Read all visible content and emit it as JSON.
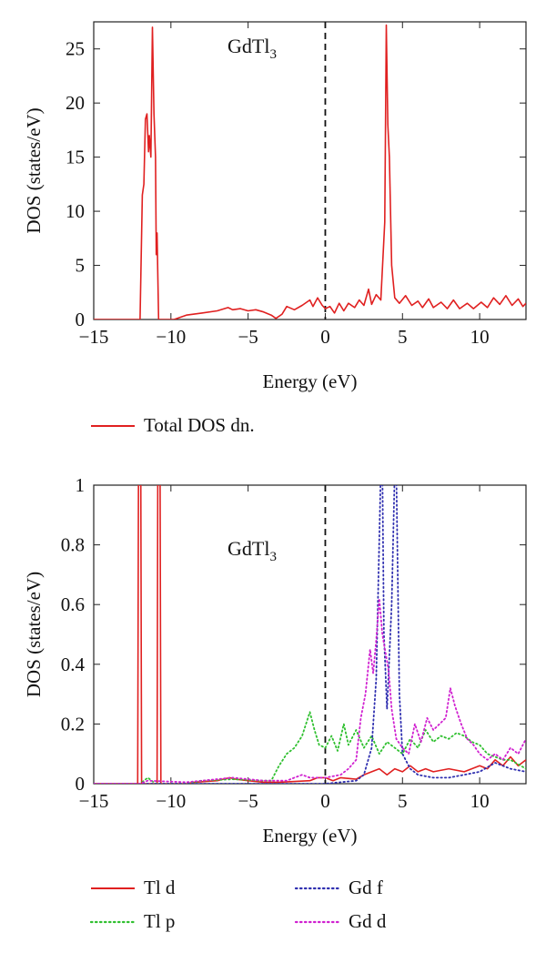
{
  "chart_data": [
    {
      "type": "line",
      "annotation": {
        "base": "GdTl",
        "sub": "3"
      },
      "xlabel": "Energy (eV)",
      "ylabel": "DOS (states/eV)",
      "xlim": [
        -15,
        13
      ],
      "ylim": [
        0,
        27.5
      ],
      "xticks": [
        -15,
        -10,
        -5,
        0,
        5,
        10
      ],
      "yticks": [
        0,
        5,
        10,
        15,
        20,
        25
      ],
      "grid": false,
      "fermi_line_x": 0,
      "legend_position": "below",
      "series": [
        {
          "name": "Total DOS dn.",
          "color": "#e02020",
          "style": "solid",
          "points": [
            [
              -15,
              0
            ],
            [
              -12.2,
              0
            ],
            [
              -12.0,
              0
            ],
            [
              -11.85,
              11.5
            ],
            [
              -11.75,
              12.5
            ],
            [
              -11.65,
              18.5
            ],
            [
              -11.55,
              19
            ],
            [
              -11.45,
              15.5
            ],
            [
              -11.4,
              17
            ],
            [
              -11.3,
              15
            ],
            [
              -11.2,
              27
            ],
            [
              -11.1,
              19
            ],
            [
              -11.0,
              15
            ],
            [
              -10.95,
              6
            ],
            [
              -10.9,
              8
            ],
            [
              -10.8,
              0
            ],
            [
              -10.6,
              0
            ],
            [
              -9.8,
              0
            ],
            [
              -9,
              0.4
            ],
            [
              -8,
              0.6
            ],
            [
              -7,
              0.8
            ],
            [
              -6.3,
              1.1
            ],
            [
              -6,
              0.9
            ],
            [
              -5.5,
              1
            ],
            [
              -5,
              0.8
            ],
            [
              -4.5,
              0.9
            ],
            [
              -4,
              0.7
            ],
            [
              -3.5,
              0.4
            ],
            [
              -3.2,
              0.1
            ],
            [
              -2.8,
              0.5
            ],
            [
              -2.5,
              1.2
            ],
            [
              -2,
              0.9
            ],
            [
              -1.5,
              1.3
            ],
            [
              -1,
              1.8
            ],
            [
              -0.8,
              1.2
            ],
            [
              -0.5,
              2
            ],
            [
              -0.2,
              1.3
            ],
            [
              0,
              1
            ],
            [
              0.3,
              1.2
            ],
            [
              0.6,
              0.6
            ],
            [
              0.9,
              1.5
            ],
            [
              1.2,
              0.8
            ],
            [
              1.5,
              1.5
            ],
            [
              1.9,
              1.1
            ],
            [
              2.2,
              1.8
            ],
            [
              2.5,
              1.3
            ],
            [
              2.8,
              2.8
            ],
            [
              3.0,
              1.4
            ],
            [
              3.3,
              2.3
            ],
            [
              3.6,
              1.8
            ],
            [
              3.85,
              9
            ],
            [
              3.95,
              27.2
            ],
            [
              4.05,
              18
            ],
            [
              4.15,
              15
            ],
            [
              4.3,
              5
            ],
            [
              4.5,
              2
            ],
            [
              4.8,
              1.5
            ],
            [
              5.2,
              2.2
            ],
            [
              5.6,
              1.3
            ],
            [
              6.0,
              1.7
            ],
            [
              6.3,
              1.1
            ],
            [
              6.7,
              1.9
            ],
            [
              7.0,
              1.1
            ],
            [
              7.5,
              1.6
            ],
            [
              7.9,
              1
            ],
            [
              8.3,
              1.8
            ],
            [
              8.7,
              1
            ],
            [
              9.2,
              1.5
            ],
            [
              9.6,
              1
            ],
            [
              10.1,
              1.6
            ],
            [
              10.5,
              1.1
            ],
            [
              10.9,
              2
            ],
            [
              11.3,
              1.4
            ],
            [
              11.7,
              2.2
            ],
            [
              12.1,
              1.3
            ],
            [
              12.5,
              1.9
            ],
            [
              12.8,
              1.2
            ],
            [
              13,
              1.5
            ]
          ]
        }
      ]
    },
    {
      "type": "line",
      "annotation": {
        "base": "GdTl",
        "sub": "3"
      },
      "xlabel": "Energy (eV)",
      "ylabel": "DOS (states/eV)",
      "xlim": [
        -15,
        13
      ],
      "ylim": [
        0,
        1
      ],
      "xticks": [
        -15,
        -10,
        -5,
        0,
        5,
        10
      ],
      "yticks": [
        0,
        0.2,
        0.4,
        0.6,
        0.8,
        1
      ],
      "grid": false,
      "fermi_line_x": 0,
      "legend_position": "below",
      "series": [
        {
          "name": "Tl d",
          "color": "#e02020",
          "style": "solid",
          "points": [
            [
              -15,
              0
            ],
            [
              -12.15,
              0
            ],
            [
              -12.1,
              1.05
            ],
            [
              -11.95,
              1.05
            ],
            [
              -11.9,
              0
            ],
            [
              -10.9,
              0
            ],
            [
              -10.85,
              1.05
            ],
            [
              -10.7,
              1.05
            ],
            [
              -10.65,
              0
            ],
            [
              -9,
              0
            ],
            [
              -8.5,
              0.005
            ],
            [
              -7,
              0.01
            ],
            [
              -6.2,
              0.02
            ],
            [
              -5.8,
              0.015
            ],
            [
              -5,
              0.01
            ],
            [
              -4,
              0.005
            ],
            [
              -3,
              0.005
            ],
            [
              -1,
              0.01
            ],
            [
              -0.5,
              0.02
            ],
            [
              0,
              0.02
            ],
            [
              0.5,
              0.01
            ],
            [
              1,
              0.02
            ],
            [
              2,
              0.015
            ],
            [
              2.5,
              0.03
            ],
            [
              3,
              0.04
            ],
            [
              3.5,
              0.05
            ],
            [
              4,
              0.03
            ],
            [
              4.5,
              0.05
            ],
            [
              5,
              0.04
            ],
            [
              5.5,
              0.06
            ],
            [
              6,
              0.04
            ],
            [
              6.5,
              0.05
            ],
            [
              7,
              0.04
            ],
            [
              8,
              0.05
            ],
            [
              9,
              0.04
            ],
            [
              10,
              0.06
            ],
            [
              10.5,
              0.05
            ],
            [
              11,
              0.08
            ],
            [
              11.5,
              0.06
            ],
            [
              12,
              0.09
            ],
            [
              12.5,
              0.06
            ],
            [
              13,
              0.08
            ]
          ]
        },
        {
          "name": "Tl p",
          "color": "#30c030",
          "style": "dotted",
          "points": [
            [
              -15,
              0
            ],
            [
              -12,
              0
            ],
            [
              -11.5,
              0.02
            ],
            [
              -11,
              0
            ],
            [
              -9,
              0
            ],
            [
              -8,
              0.01
            ],
            [
              -6,
              0.015
            ],
            [
              -4,
              0.01
            ],
            [
              -3.5,
              0.01
            ],
            [
              -3,
              0.06
            ],
            [
              -2.5,
              0.1
            ],
            [
              -2,
              0.12
            ],
            [
              -1.5,
              0.16
            ],
            [
              -1,
              0.24
            ],
            [
              -0.7,
              0.18
            ],
            [
              -0.4,
              0.13
            ],
            [
              0,
              0.12
            ],
            [
              0.4,
              0.16
            ],
            [
              0.8,
              0.11
            ],
            [
              1.2,
              0.2
            ],
            [
              1.5,
              0.13
            ],
            [
              2,
              0.18
            ],
            [
              2.5,
              0.12
            ],
            [
              3,
              0.16
            ],
            [
              3.5,
              0.1
            ],
            [
              4,
              0.14
            ],
            [
              4.5,
              0.12
            ],
            [
              5,
              0.1
            ],
            [
              5.5,
              0.15
            ],
            [
              6,
              0.12
            ],
            [
              6.5,
              0.18
            ],
            [
              7,
              0.14
            ],
            [
              7.5,
              0.16
            ],
            [
              8,
              0.15
            ],
            [
              8.5,
              0.17
            ],
            [
              9,
              0.16
            ],
            [
              9.5,
              0.14
            ],
            [
              10,
              0.13
            ],
            [
              10.5,
              0.1
            ],
            [
              11,
              0.09
            ],
            [
              11.5,
              0.08
            ],
            [
              12,
              0.08
            ],
            [
              13,
              0.05
            ]
          ]
        },
        {
          "name": "Gd f",
          "color": "#3030b0",
          "style": "dotted",
          "points": [
            [
              -15,
              0
            ],
            [
              0,
              0
            ],
            [
              2,
              0.01
            ],
            [
              2.5,
              0.03
            ],
            [
              3,
              0.12
            ],
            [
              3.3,
              0.35
            ],
            [
              3.6,
              1.05
            ],
            [
              3.7,
              1.05
            ],
            [
              3.8,
              0.5
            ],
            [
              4.0,
              0.25
            ],
            [
              4.3,
              0.6
            ],
            [
              4.5,
              1.05
            ],
            [
              4.6,
              1.05
            ],
            [
              4.8,
              0.3
            ],
            [
              5,
              0.1
            ],
            [
              5.5,
              0.05
            ],
            [
              6,
              0.03
            ],
            [
              7,
              0.02
            ],
            [
              8,
              0.02
            ],
            [
              9,
              0.03
            ],
            [
              10,
              0.04
            ],
            [
              11,
              0.07
            ],
            [
              12,
              0.05
            ],
            [
              13,
              0.04
            ]
          ]
        },
        {
          "name": "Gd d",
          "color": "#d020d0",
          "style": "dotted",
          "points": [
            [
              -15,
              0
            ],
            [
              -12,
              0
            ],
            [
              -11.5,
              0.01
            ],
            [
              -9,
              0.005
            ],
            [
              -8,
              0.01
            ],
            [
              -6,
              0.02
            ],
            [
              -4,
              0.01
            ],
            [
              -3,
              0.01
            ],
            [
              -2.5,
              0.01
            ],
            [
              -2,
              0.02
            ],
            [
              -1.5,
              0.03
            ],
            [
              -1,
              0.02
            ],
            [
              0,
              0.02
            ],
            [
              1,
              0.03
            ],
            [
              1.5,
              0.05
            ],
            [
              2,
              0.08
            ],
            [
              2.3,
              0.22
            ],
            [
              2.6,
              0.3
            ],
            [
              2.9,
              0.45
            ],
            [
              3.1,
              0.37
            ],
            [
              3.3,
              0.48
            ],
            [
              3.5,
              0.62
            ],
            [
              3.7,
              0.5
            ],
            [
              3.9,
              0.44
            ],
            [
              4.1,
              0.38
            ],
            [
              4.3,
              0.25
            ],
            [
              4.6,
              0.15
            ],
            [
              5,
              0.12
            ],
            [
              5.4,
              0.1
            ],
            [
              5.8,
              0.2
            ],
            [
              6.2,
              0.14
            ],
            [
              6.6,
              0.22
            ],
            [
              7,
              0.18
            ],
            [
              7.4,
              0.2
            ],
            [
              7.8,
              0.22
            ],
            [
              8.1,
              0.32
            ],
            [
              8.4,
              0.26
            ],
            [
              8.8,
              0.2
            ],
            [
              9.2,
              0.15
            ],
            [
              9.6,
              0.13
            ],
            [
              10,
              0.1
            ],
            [
              10.5,
              0.08
            ],
            [
              11,
              0.1
            ],
            [
              11.5,
              0.08
            ],
            [
              12,
              0.12
            ],
            [
              12.5,
              0.1
            ],
            [
              13,
              0.15
            ]
          ]
        }
      ]
    }
  ]
}
